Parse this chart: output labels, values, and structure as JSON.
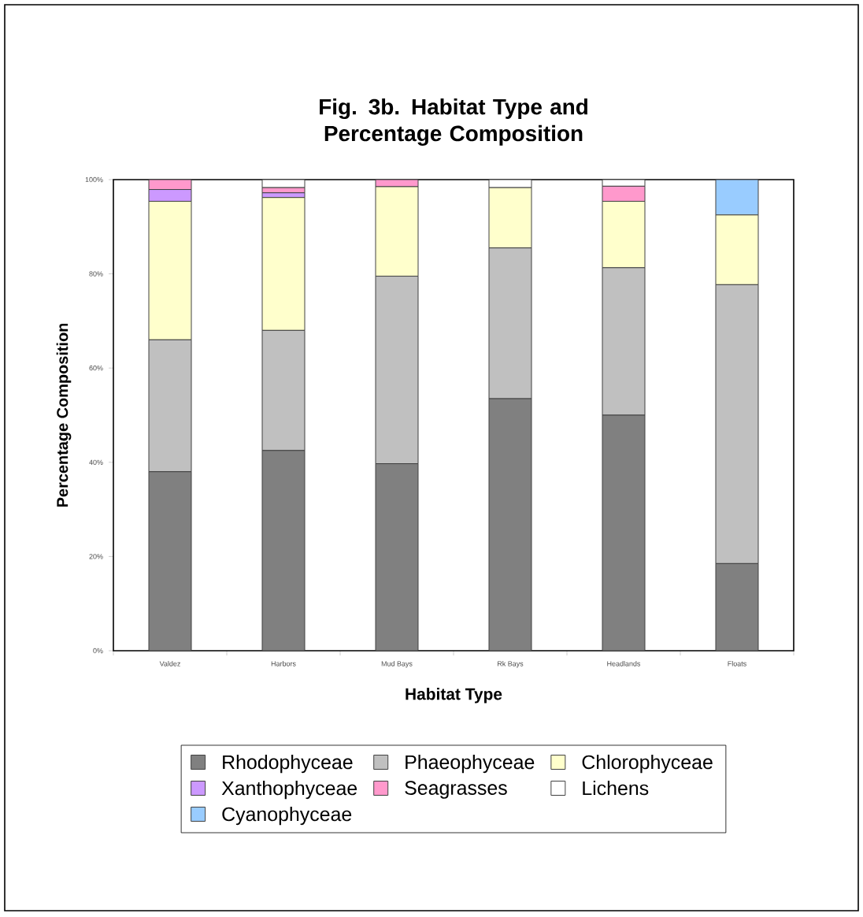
{
  "chart_data": {
    "type": "bar",
    "stacked": true,
    "title": "Fig. 3b.  Habitat Type and Percentage Composition",
    "xlabel": "Habitat Type",
    "ylabel": "Percentage Composition",
    "categories": [
      "Valdez",
      "Harbors",
      "Mud Bays",
      "Rk Bays",
      "Headlands",
      "Floats"
    ],
    "series": [
      {
        "name": "Rhodophyceae",
        "color": "#808080",
        "values": [
          38,
          42.5,
          39.7,
          53.5,
          50,
          18.5
        ]
      },
      {
        "name": "Phaeophyceae",
        "color": "#c0c0c0",
        "values": [
          28,
          25.5,
          39.8,
          32,
          31.3,
          59.2
        ]
      },
      {
        "name": "Chlorophyceae",
        "color": "#ffffcc",
        "values": [
          29.4,
          28.2,
          19,
          12.8,
          14.1,
          14.8
        ]
      },
      {
        "name": "Xanthophyceae",
        "color": "#cc99ff",
        "values": [
          2.5,
          1,
          0,
          0,
          0,
          0
        ]
      },
      {
        "name": "Seagrasses",
        "color": "#ff99cc",
        "values": [
          2.1,
          1.1,
          1.5,
          0,
          3.2,
          0
        ]
      },
      {
        "name": "Lichens",
        "color": "#ffffff",
        "values": [
          0,
          1.7,
          0,
          1.7,
          1.4,
          0
        ]
      },
      {
        "name": "Cyanophyceae",
        "color": "#99ccff",
        "values": [
          0,
          0,
          0,
          0,
          0,
          7.5
        ]
      }
    ],
    "ylim": [
      0,
      100
    ],
    "yticks": [
      {
        "value": 0,
        "label": "0%"
      },
      {
        "value": 20,
        "label": "20%"
      },
      {
        "value": 40,
        "label": "40%"
      },
      {
        "value": 60,
        "label": "60%"
      },
      {
        "value": 80,
        "label": "80%"
      },
      {
        "value": 100,
        "label": "100%"
      }
    ],
    "legend": "bottom",
    "grid": false
  }
}
